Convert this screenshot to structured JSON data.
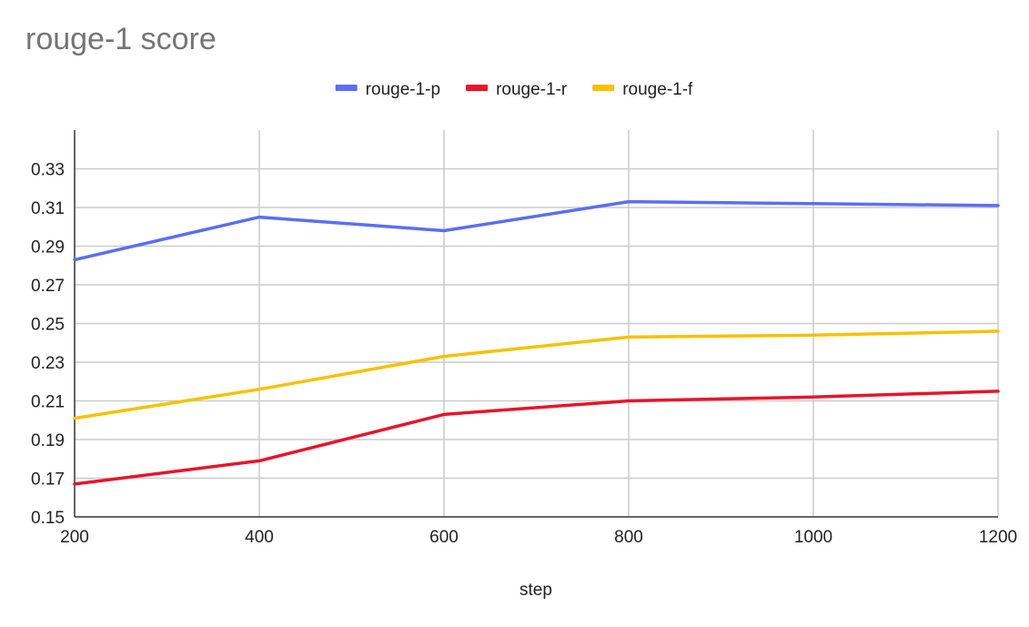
{
  "chart_data": {
    "type": "line",
    "title": "rouge-1 score",
    "xlabel": "step",
    "ylabel": "",
    "x": [
      200,
      400,
      600,
      800,
      1000,
      1200
    ],
    "xlim": [
      200,
      1200
    ],
    "ylim": [
      0.15,
      0.35
    ],
    "x_ticks": [
      "200",
      "400",
      "600",
      "800",
      "1000",
      "1200"
    ],
    "y_ticks": [
      "0.15",
      "0.17",
      "0.19",
      "0.21",
      "0.23",
      "0.25",
      "0.27",
      "0.29",
      "0.31",
      "0.33"
    ],
    "grid": true,
    "legend_position": "top-center",
    "series": [
      {
        "name": "rouge-1-p",
        "color": "#5b6ef5",
        "values": [
          0.283,
          0.305,
          0.298,
          0.313,
          0.312,
          0.311
        ]
      },
      {
        "name": "rouge-1-r",
        "color": "#e8142b",
        "values": [
          0.167,
          0.179,
          0.203,
          0.21,
          0.212,
          0.215
        ]
      },
      {
        "name": "rouge-1-f",
        "color": "#f5c200",
        "values": [
          0.201,
          0.216,
          0.233,
          0.243,
          0.244,
          0.246
        ]
      }
    ]
  }
}
